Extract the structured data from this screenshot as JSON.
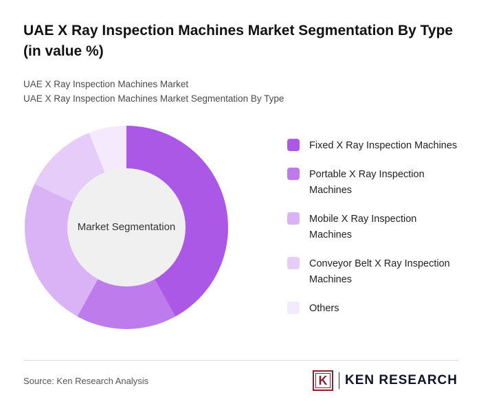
{
  "page": {
    "title": "UAE X Ray Inspection Machines Market Segmentation By Type (in value %)",
    "subtitle_line1": "UAE X Ray Inspection Machines Market",
    "subtitle_line2": "UAE X Ray Inspection Machines Market Segmentation By Type",
    "source": "Source: Ken Research Analysis",
    "logo": {
      "icon_letter": "K",
      "brand": "KEN RESEARCH"
    }
  },
  "chart_data": {
    "type": "pie",
    "donut": true,
    "title": "UAE X Ray Inspection Machines Market Segmentation By Type (in value %)",
    "center_label": "Market Segmentation",
    "categories": [
      "Fixed X Ray Inspection Machines",
      "Portable X Ray Inspection Machines",
      "Mobile X Ray Inspection Machines",
      "Conveyor Belt X Ray Inspection Machines",
      "Others"
    ],
    "values": [
      42,
      16,
      24,
      12,
      6
    ],
    "colors": [
      "#ac58e6",
      "#bd7bec",
      "#d9b3f5",
      "#e6cdf9",
      "#f4e9fd"
    ],
    "legend_position": "right",
    "start_angle_deg": 0,
    "center_fill": "#f0f0f0"
  }
}
